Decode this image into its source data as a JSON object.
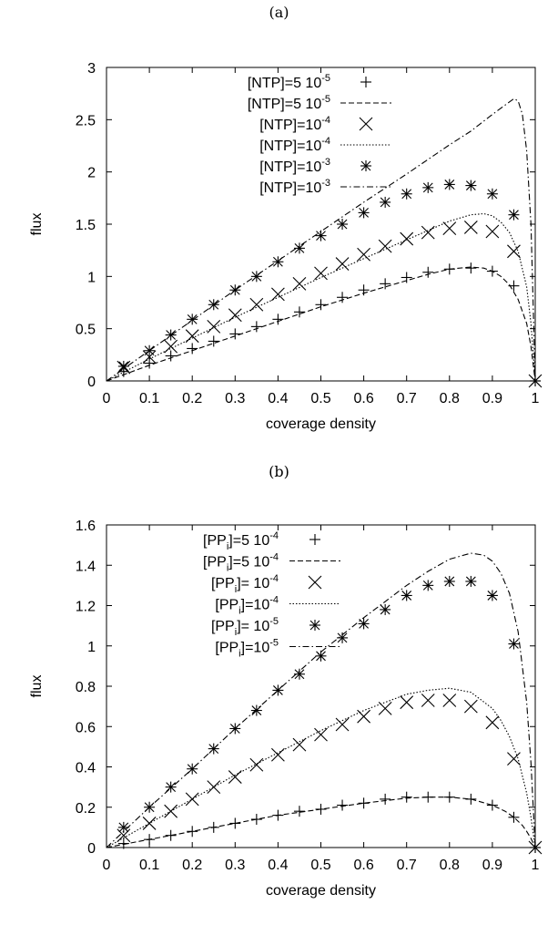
{
  "panel_labels": [
    "(a)",
    "(b)"
  ],
  "chart_data": [
    {
      "type": "line",
      "xlabel": "coverage density",
      "ylabel": "flux",
      "xlim": [
        0,
        1
      ],
      "ylim": [
        0,
        3
      ],
      "xticks": [
        "0",
        "0.1",
        "0.2",
        "0.3",
        "0.4",
        "0.5",
        "0.6",
        "0.7",
        "0.8",
        "0.9",
        "1"
      ],
      "yticks": [
        "0",
        "0.5",
        "1",
        "1.5",
        "2",
        "2.5",
        "3"
      ],
      "legend_position": "top-left",
      "series": [
        {
          "name": "[NTP]=5 10-5",
          "kind": "points",
          "marker": "plus",
          "x": [
            0.04,
            0.1,
            0.15,
            0.2,
            0.25,
            0.3,
            0.35,
            0.4,
            0.45,
            0.5,
            0.55,
            0.6,
            0.65,
            0.7,
            0.75,
            0.8,
            0.85,
            0.9,
            0.95,
            1
          ],
          "y": [
            0.09,
            0.17,
            0.24,
            0.31,
            0.38,
            0.45,
            0.52,
            0.59,
            0.66,
            0.73,
            0.8,
            0.87,
            0.93,
            0.99,
            1.04,
            1.07,
            1.08,
            1.05,
            0.91,
            0
          ]
        },
        {
          "name": "[NTP]=5 10-5",
          "kind": "line",
          "dash": "6,3",
          "x": [
            0,
            0.1,
            0.2,
            0.3,
            0.4,
            0.5,
            0.6,
            0.7,
            0.75,
            0.8,
            0.85,
            0.88,
            0.9,
            0.92,
            0.94,
            0.96,
            0.98,
            0.99,
            1
          ],
          "y": [
            0,
            0.15,
            0.29,
            0.43,
            0.57,
            0.71,
            0.84,
            0.96,
            1.02,
            1.07,
            1.09,
            1.08,
            1.05,
            1.0,
            0.92,
            0.78,
            0.55,
            0.33,
            0
          ]
        },
        {
          "name": "[NTP]=10-4",
          "kind": "points",
          "marker": "x",
          "x": [
            0.04,
            0.1,
            0.15,
            0.2,
            0.25,
            0.3,
            0.35,
            0.4,
            0.45,
            0.5,
            0.55,
            0.6,
            0.65,
            0.7,
            0.75,
            0.8,
            0.85,
            0.9,
            0.95,
            1
          ],
          "y": [
            0.13,
            0.23,
            0.33,
            0.43,
            0.52,
            0.63,
            0.73,
            0.83,
            0.93,
            1.03,
            1.12,
            1.21,
            1.29,
            1.36,
            1.42,
            1.46,
            1.47,
            1.43,
            1.24,
            0
          ]
        },
        {
          "name": "[NTP]=10-4",
          "kind": "line",
          "dash": "1.5,2",
          "x": [
            0,
            0.1,
            0.2,
            0.3,
            0.4,
            0.5,
            0.6,
            0.7,
            0.75,
            0.8,
            0.85,
            0.88,
            0.9,
            0.92,
            0.94,
            0.96,
            0.98,
            0.99,
            1
          ],
          "y": [
            0,
            0.21,
            0.41,
            0.61,
            0.8,
            0.99,
            1.17,
            1.35,
            1.44,
            1.53,
            1.59,
            1.6,
            1.58,
            1.52,
            1.42,
            1.24,
            0.9,
            0.55,
            0
          ]
        },
        {
          "name": "[NTP]=10-3",
          "kind": "points",
          "marker": "star",
          "x": [
            0.04,
            0.1,
            0.15,
            0.2,
            0.25,
            0.3,
            0.35,
            0.4,
            0.45,
            0.5,
            0.55,
            0.6,
            0.65,
            0.7,
            0.75,
            0.8,
            0.85,
            0.9,
            0.95,
            1
          ],
          "y": [
            0.14,
            0.29,
            0.44,
            0.59,
            0.73,
            0.87,
            1.0,
            1.14,
            1.27,
            1.39,
            1.5,
            1.61,
            1.71,
            1.79,
            1.85,
            1.88,
            1.87,
            1.79,
            1.59,
            0
          ]
        },
        {
          "name": "[NTP]=10-3",
          "kind": "line",
          "dash": "7,3,1.5,3",
          "x": [
            0,
            0.1,
            0.2,
            0.3,
            0.4,
            0.5,
            0.6,
            0.7,
            0.8,
            0.85,
            0.9,
            0.92,
            0.94,
            0.95,
            0.96,
            0.97,
            0.98,
            0.99,
            1
          ],
          "y": [
            0,
            0.29,
            0.58,
            0.87,
            1.15,
            1.43,
            1.71,
            1.98,
            2.26,
            2.39,
            2.55,
            2.61,
            2.67,
            2.7,
            2.68,
            2.55,
            2.2,
            1.5,
            0
          ]
        }
      ]
    },
    {
      "type": "line",
      "xlabel": "coverage density",
      "ylabel": "flux",
      "xlim": [
        0,
        1
      ],
      "ylim": [
        0,
        1.6
      ],
      "xticks": [
        "0",
        "0.1",
        "0.2",
        "0.3",
        "0.4",
        "0.5",
        "0.6",
        "0.7",
        "0.8",
        "0.9",
        "1"
      ],
      "yticks": [
        "0",
        "0.2",
        "0.4",
        "0.6",
        "0.8",
        "1",
        "1.2",
        "1.4",
        "1.6"
      ],
      "legend_position": "top-left",
      "series": [
        {
          "name": "[PPi]=5 10-4",
          "kind": "points",
          "marker": "plus",
          "x": [
            0.04,
            0.1,
            0.15,
            0.2,
            0.25,
            0.3,
            0.35,
            0.4,
            0.45,
            0.5,
            0.55,
            0.6,
            0.65,
            0.7,
            0.75,
            0.8,
            0.85,
            0.9,
            0.95,
            1
          ],
          "y": [
            0.02,
            0.04,
            0.06,
            0.08,
            0.1,
            0.12,
            0.14,
            0.16,
            0.18,
            0.19,
            0.21,
            0.22,
            0.24,
            0.25,
            0.25,
            0.25,
            0.24,
            0.21,
            0.15,
            0
          ]
        },
        {
          "name": "[PPi]=5 10-4",
          "kind": "line",
          "dash": "6,3",
          "x": [
            0,
            0.1,
            0.2,
            0.3,
            0.4,
            0.5,
            0.6,
            0.7,
            0.75,
            0.8,
            0.85,
            0.9,
            0.93,
            0.95,
            0.97,
            0.98,
            0.99,
            1
          ],
          "y": [
            0,
            0.04,
            0.08,
            0.12,
            0.16,
            0.19,
            0.22,
            0.245,
            0.25,
            0.25,
            0.24,
            0.21,
            0.18,
            0.15,
            0.11,
            0.08,
            0.045,
            0
          ]
        },
        {
          "name": "[PPi]= 10-4",
          "kind": "points",
          "marker": "x",
          "x": [
            0.04,
            0.1,
            0.15,
            0.2,
            0.25,
            0.3,
            0.35,
            0.4,
            0.45,
            0.5,
            0.55,
            0.6,
            0.65,
            0.7,
            0.75,
            0.8,
            0.85,
            0.9,
            0.95,
            1
          ],
          "y": [
            0.06,
            0.12,
            0.18,
            0.24,
            0.3,
            0.35,
            0.41,
            0.46,
            0.51,
            0.56,
            0.61,
            0.65,
            0.69,
            0.72,
            0.73,
            0.73,
            0.7,
            0.62,
            0.44,
            0
          ]
        },
        {
          "name": "[PPi]=10-4",
          "kind": "line",
          "dash": "1.5,2",
          "x": [
            0,
            0.1,
            0.2,
            0.3,
            0.4,
            0.5,
            0.6,
            0.7,
            0.75,
            0.8,
            0.85,
            0.9,
            0.92,
            0.94,
            0.96,
            0.98,
            0.99,
            1
          ],
          "y": [
            0,
            0.12,
            0.24,
            0.36,
            0.47,
            0.58,
            0.68,
            0.76,
            0.78,
            0.79,
            0.77,
            0.69,
            0.63,
            0.55,
            0.44,
            0.27,
            0.15,
            0
          ]
        },
        {
          "name": "[PPi]= 10-5",
          "kind": "points",
          "marker": "star",
          "x": [
            0.04,
            0.1,
            0.15,
            0.2,
            0.25,
            0.3,
            0.35,
            0.4,
            0.45,
            0.5,
            0.55,
            0.6,
            0.65,
            0.7,
            0.75,
            0.8,
            0.85,
            0.9,
            0.95,
            1
          ],
          "y": [
            0.1,
            0.2,
            0.3,
            0.39,
            0.49,
            0.59,
            0.68,
            0.78,
            0.86,
            0.95,
            1.04,
            1.11,
            1.18,
            1.25,
            1.3,
            1.32,
            1.32,
            1.25,
            1.01,
            0
          ]
        },
        {
          "name": "[PPi]=10-5",
          "kind": "line",
          "dash": "7,3,1.5,3",
          "x": [
            0,
            0.1,
            0.2,
            0.3,
            0.4,
            0.5,
            0.6,
            0.7,
            0.75,
            0.8,
            0.85,
            0.88,
            0.9,
            0.92,
            0.94,
            0.96,
            0.98,
            0.99,
            1
          ],
          "y": [
            0,
            0.2,
            0.39,
            0.59,
            0.78,
            0.97,
            1.14,
            1.3,
            1.37,
            1.43,
            1.46,
            1.45,
            1.42,
            1.36,
            1.26,
            1.07,
            0.72,
            0.42,
            0
          ]
        }
      ]
    }
  ],
  "legend_text": [
    [
      {
        "pre": "[NTP]=5 10",
        "sup": "-5",
        "sub": ""
      },
      {
        "pre": "[NTP]=5 10",
        "sup": "-5",
        "sub": ""
      },
      {
        "pre": "[NTP]=10",
        "sup": "-4",
        "sub": ""
      },
      {
        "pre": "[NTP]=10",
        "sup": "-4",
        "sub": ""
      },
      {
        "pre": "[NTP]=10",
        "sup": "-3",
        "sub": ""
      },
      {
        "pre": "[NTP]=10",
        "sup": "-3",
        "sub": ""
      }
    ],
    [
      {
        "pre": "[PP",
        "sub": "i",
        "post": "]=5 10",
        "sup": "-4"
      },
      {
        "pre": "[PP",
        "sub": "i",
        "post": "]=5 10",
        "sup": "-4"
      },
      {
        "pre": "[PP",
        "sub": "i",
        "post": "]= 10",
        "sup": "-4"
      },
      {
        "pre": "[PP",
        "sub": "i",
        "post": "]=10",
        "sup": "-4"
      },
      {
        "pre": "[PP",
        "sub": "i",
        "post": "]= 10",
        "sup": "-5"
      },
      {
        "pre": "[PP",
        "sub": "i",
        "post": "]=10",
        "sup": "-5"
      }
    ]
  ]
}
